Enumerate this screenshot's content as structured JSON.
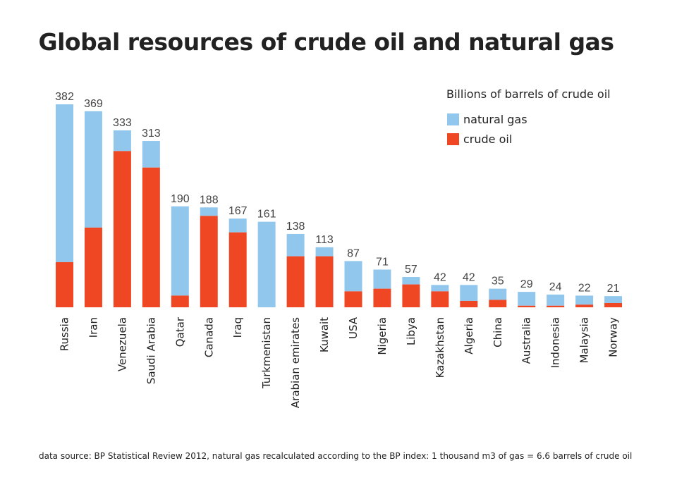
{
  "chart_data": {
    "type": "bar",
    "stacked": true,
    "title": "Global resources of crude oil and natural gas",
    "legend_title": "Billions of barrels of crude oil",
    "legend_position": "top-right",
    "grid": false,
    "ylim": [
      0,
      382
    ],
    "categories": [
      "Russia",
      "Iran",
      "Venezuela",
      "Saudi Arabia",
      "Qatar",
      "Canada",
      "Iraq",
      "Turkmenistan",
      "Arabian emirates",
      "Kuwait",
      "USA",
      "Nigeria",
      "Libya",
      "Kazakhstan",
      "Algeria",
      "China",
      "Australia",
      "Indonesia",
      "Malaysia",
      "Norway"
    ],
    "totals": [
      382,
      369,
      333,
      313,
      190,
      188,
      167,
      161,
      138,
      113,
      87,
      71,
      57,
      42,
      42,
      35,
      29,
      24,
      22,
      21
    ],
    "series": [
      {
        "name": "crude oil",
        "color": "#ef4723",
        "values": [
          85,
          150,
          294,
          263,
          22,
          172,
          141,
          0,
          96,
          96,
          30,
          35,
          43,
          30,
          12,
          14,
          3,
          3,
          5,
          8
        ]
      },
      {
        "name": "natural gas",
        "color": "#92c7ed",
        "values": [
          297,
          219,
          39,
          50,
          168,
          16,
          26,
          161,
          42,
          17,
          57,
          36,
          14,
          12,
          30,
          21,
          26,
          21,
          17,
          13
        ]
      }
    ],
    "source": "data source: BP Statistical Review 2012, natural gas recalculated according to the BP index: 1 thousand m3 of gas = 6.6 barrels of crude oil"
  }
}
